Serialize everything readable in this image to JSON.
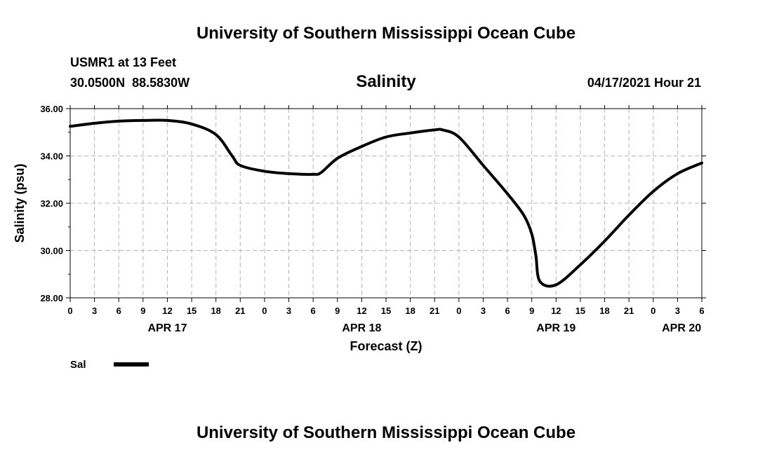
{
  "header": {
    "title": "University of Southern Mississippi Ocean Cube",
    "station": "USMR1 at 13 Feet",
    "coords": "30.0500N  88.5830W",
    "timestamp": "04/17/2021 Hour 21"
  },
  "footer": {
    "title": "University of Southern Mississippi Ocean Cube"
  },
  "chart_data": {
    "type": "line",
    "title": "Salinity",
    "xlabel": "Forecast (Z)",
    "ylabel": "Salinity (psu)",
    "ylim": [
      28,
      36
    ],
    "xlim": [
      0,
      78
    ],
    "grid": true,
    "yticks": [
      28,
      30,
      32,
      34,
      36
    ],
    "ytick_labels": [
      "28.00",
      "30.00",
      "32.00",
      "34.00",
      "36.00"
    ],
    "xticks": [
      0,
      3,
      6,
      9,
      12,
      15,
      18,
      21,
      24,
      27,
      30,
      33,
      36,
      39,
      42,
      45,
      48,
      51,
      54,
      57,
      60,
      63,
      66,
      69,
      72,
      75,
      78
    ],
    "xtick_labels": [
      "0",
      "3",
      "6",
      "9",
      "12",
      "15",
      "18",
      "21",
      "0",
      "3",
      "6",
      "9",
      "12",
      "15",
      "18",
      "21",
      "0",
      "3",
      "6",
      "9",
      "12",
      "15",
      "18",
      "21",
      "0",
      "3",
      "6"
    ],
    "date_labels": [
      {
        "x": 12,
        "label": "APR 17"
      },
      {
        "x": 36,
        "label": "APR 18"
      },
      {
        "x": 60,
        "label": "APR 19"
      },
      {
        "x": 75.5,
        "label": "APR 20"
      }
    ],
    "series": [
      {
        "name": "Sal",
        "color": "#000000",
        "x": [
          0,
          3,
          6,
          9,
          12,
          15,
          18,
          20,
          21,
          24,
          27,
          30,
          31,
          33,
          36,
          39,
          42,
          45,
          46,
          48,
          51,
          54,
          56,
          57,
          57.5,
          58,
          60,
          63,
          66,
          69,
          72,
          75,
          78
        ],
        "y": [
          35.25,
          35.38,
          35.47,
          35.5,
          35.5,
          35.35,
          34.9,
          34.0,
          33.6,
          33.35,
          33.25,
          33.22,
          33.3,
          33.9,
          34.4,
          34.8,
          34.97,
          35.1,
          35.1,
          34.8,
          33.6,
          32.4,
          31.5,
          30.7,
          29.8,
          28.7,
          28.55,
          29.4,
          30.4,
          31.5,
          32.5,
          33.25,
          33.7
        ]
      }
    ],
    "legend": {
      "label": "Sal",
      "position": "bottom-left"
    }
  }
}
